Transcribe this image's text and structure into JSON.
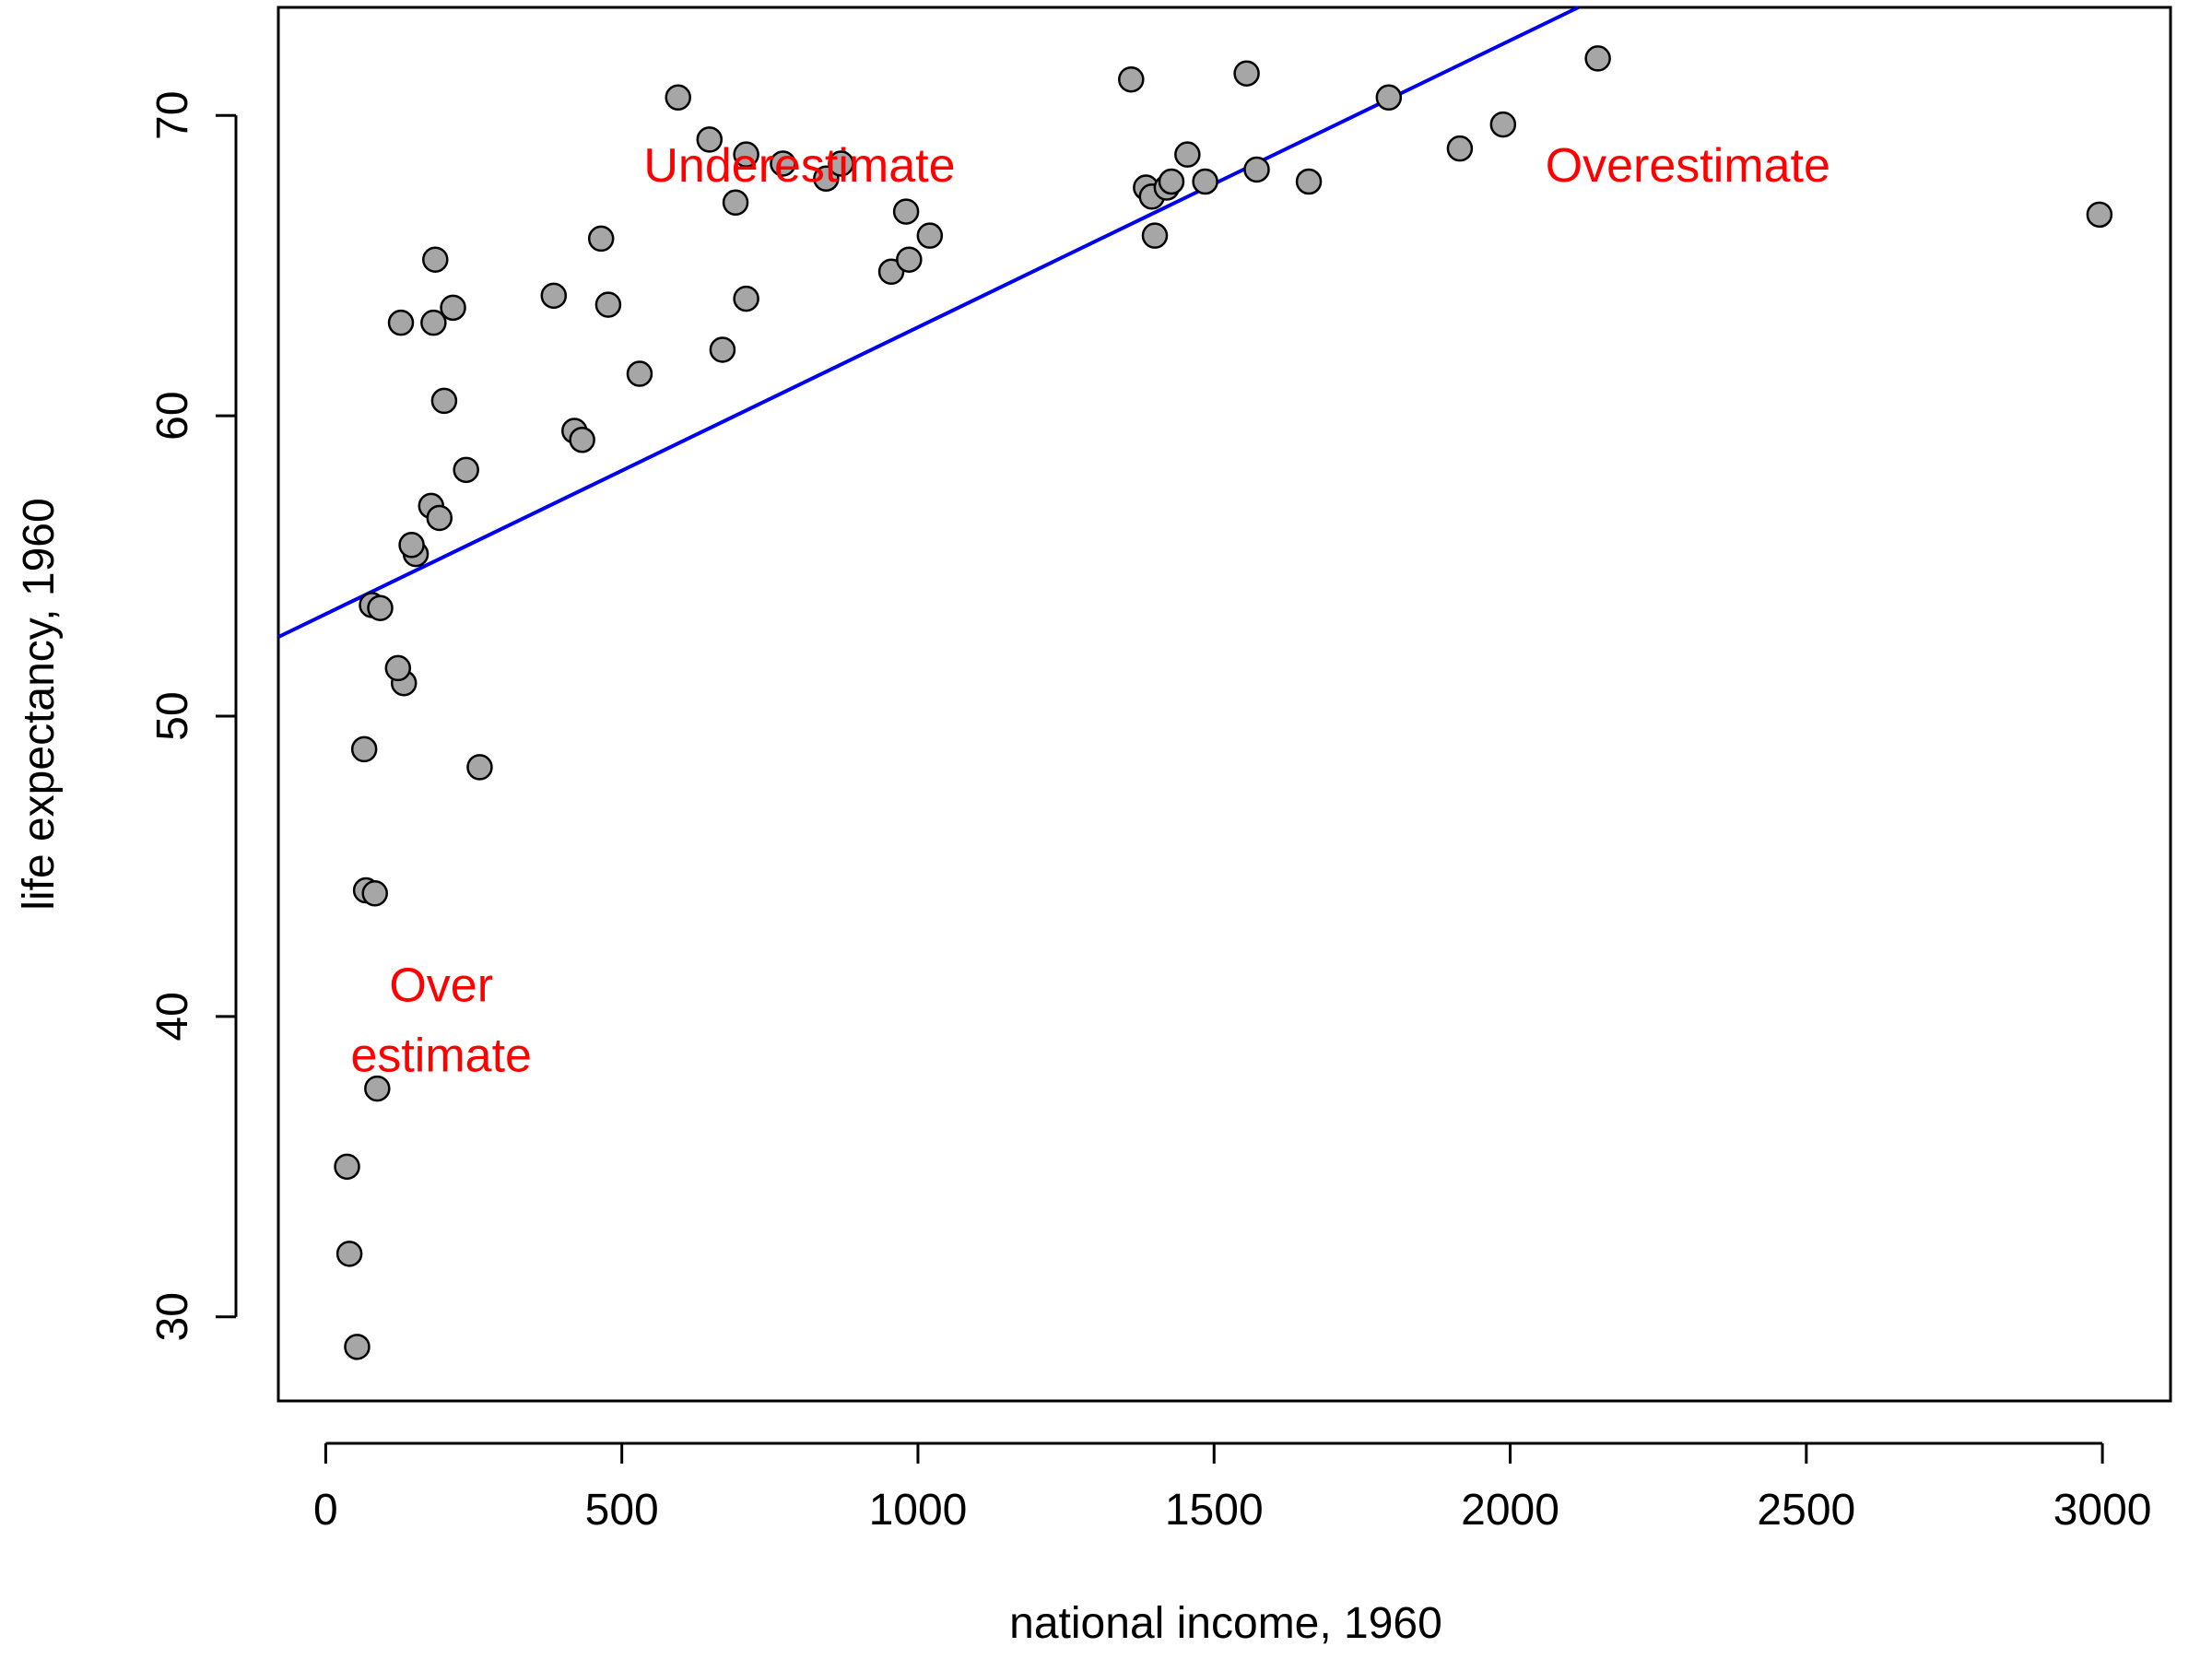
{
  "chart_data": {
    "type": "scatter",
    "title": "",
    "xlabel": "national income, 1960",
    "ylabel": "life expectancy, 1960",
    "xlim": [
      -80,
      3115
    ],
    "ylim": [
      27.2,
      73.6
    ],
    "xticks": [
      0,
      500,
      1000,
      1500,
      2000,
      2500,
      3000
    ],
    "yticks": [
      30,
      40,
      50,
      60,
      70
    ],
    "grid": false,
    "legend": "none",
    "point_fill": "#a6a6a6",
    "point_stroke": "#000000",
    "fit_line": {
      "color": "#0000ee",
      "intercept": 53.4,
      "slope": 0.00955
    },
    "annotation_color": "#ff0000",
    "annotations": [
      {
        "lines": [
          "Underestimate"
        ],
        "x": 800,
        "y": 67.8
      },
      {
        "lines": [
          "Overestimate"
        ],
        "x": 2300,
        "y": 67.8
      },
      {
        "lines": [
          "Over",
          "estimate"
        ],
        "x": 195,
        "y": 40.5
      }
    ],
    "points": [
      {
        "x": 53,
        "y": 29.0
      },
      {
        "x": 40,
        "y": 32.1
      },
      {
        "x": 36,
        "y": 35.0
      },
      {
        "x": 87,
        "y": 37.6
      },
      {
        "x": 68,
        "y": 44.2
      },
      {
        "x": 83,
        "y": 44.1
      },
      {
        "x": 65,
        "y": 48.9
      },
      {
        "x": 260,
        "y": 48.3
      },
      {
        "x": 132,
        "y": 51.1
      },
      {
        "x": 122,
        "y": 51.6
      },
      {
        "x": 78,
        "y": 53.7
      },
      {
        "x": 92,
        "y": 53.6
      },
      {
        "x": 152,
        "y": 55.4
      },
      {
        "x": 145,
        "y": 55.7
      },
      {
        "x": 178,
        "y": 57.0
      },
      {
        "x": 192,
        "y": 56.6
      },
      {
        "x": 237,
        "y": 58.2
      },
      {
        "x": 200,
        "y": 60.5
      },
      {
        "x": 127,
        "y": 63.1
      },
      {
        "x": 182,
        "y": 63.1
      },
      {
        "x": 215,
        "y": 63.6
      },
      {
        "x": 185,
        "y": 65.2
      },
      {
        "x": 385,
        "y": 64.0
      },
      {
        "x": 420,
        "y": 59.5
      },
      {
        "x": 433,
        "y": 59.2
      },
      {
        "x": 465,
        "y": 65.9
      },
      {
        "x": 477,
        "y": 63.7
      },
      {
        "x": 530,
        "y": 61.4
      },
      {
        "x": 595,
        "y": 70.6
      },
      {
        "x": 648,
        "y": 69.2
      },
      {
        "x": 670,
        "y": 62.2
      },
      {
        "x": 692,
        "y": 67.1
      },
      {
        "x": 710,
        "y": 68.7
      },
      {
        "x": 710,
        "y": 63.9
      },
      {
        "x": 772,
        "y": 68.4
      },
      {
        "x": 845,
        "y": 67.9
      },
      {
        "x": 870,
        "y": 68.4
      },
      {
        "x": 955,
        "y": 64.8
      },
      {
        "x": 980,
        "y": 66.8
      },
      {
        "x": 985,
        "y": 65.2
      },
      {
        "x": 1020,
        "y": 66.0
      },
      {
        "x": 1360,
        "y": 71.2
      },
      {
        "x": 1385,
        "y": 67.6
      },
      {
        "x": 1395,
        "y": 67.3
      },
      {
        "x": 1400,
        "y": 66.0
      },
      {
        "x": 1420,
        "y": 67.6
      },
      {
        "x": 1428,
        "y": 67.8
      },
      {
        "x": 1455,
        "y": 68.7
      },
      {
        "x": 1485,
        "y": 67.8
      },
      {
        "x": 1555,
        "y": 71.4
      },
      {
        "x": 1572,
        "y": 68.2
      },
      {
        "x": 1660,
        "y": 67.8
      },
      {
        "x": 1795,
        "y": 70.6
      },
      {
        "x": 1915,
        "y": 68.9
      },
      {
        "x": 1988,
        "y": 69.7
      },
      {
        "x": 2148,
        "y": 71.9
      },
      {
        "x": 2995,
        "y": 66.7
      }
    ]
  }
}
